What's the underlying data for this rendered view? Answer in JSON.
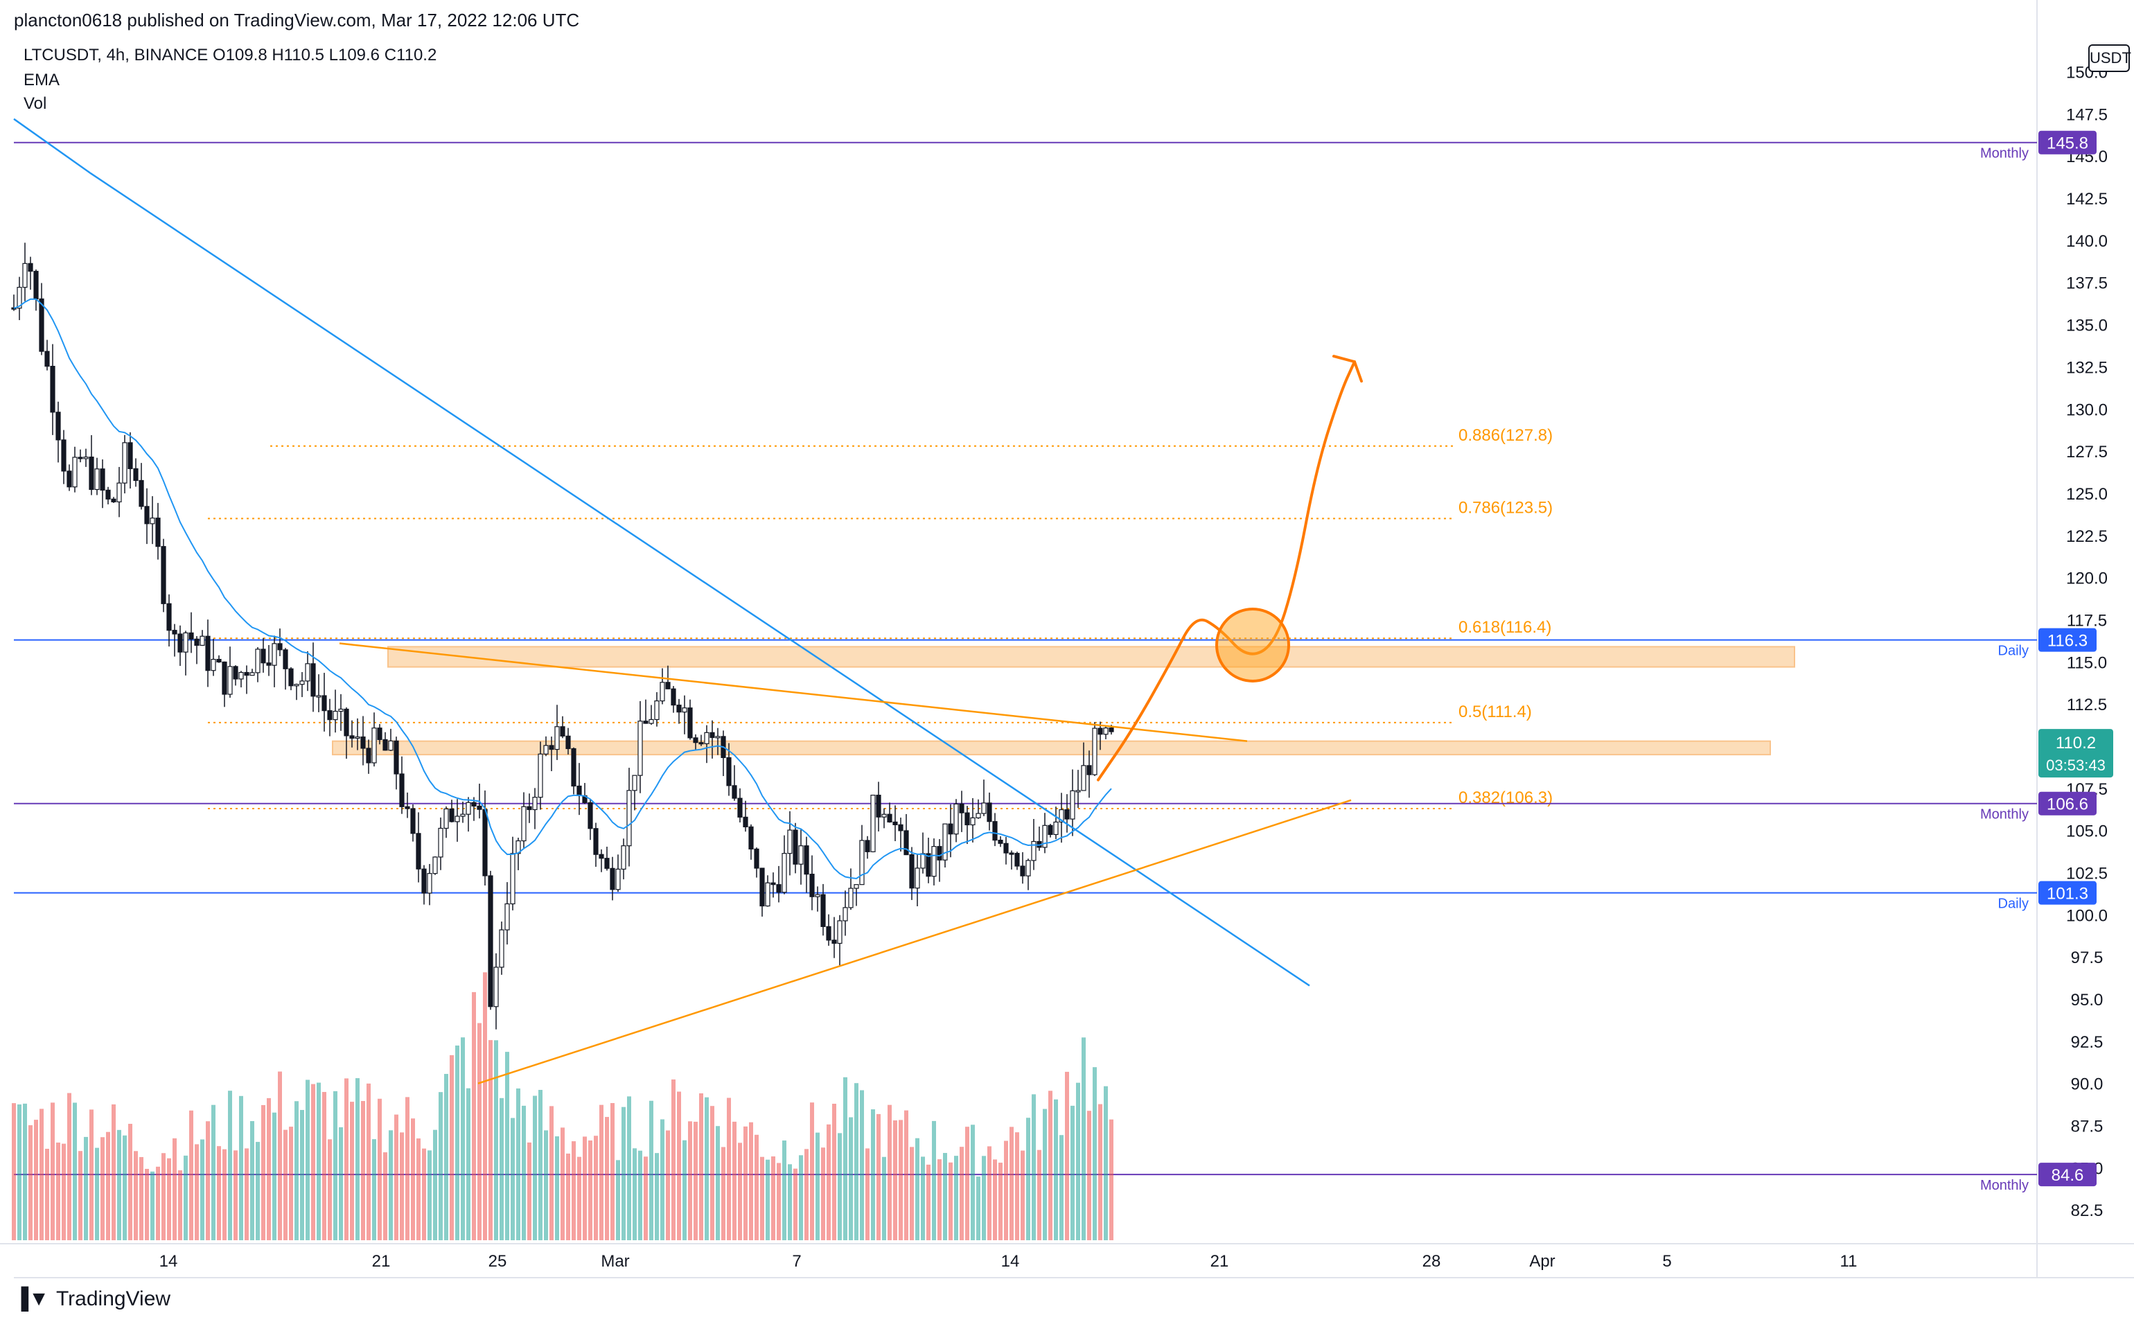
{
  "header": {
    "published": "plancton0618 published on TradingView.com, Mar 17, 2022 12:06 UTC"
  },
  "legend": {
    "symbol_line": "LTCUSDT, 4h, BINANCE  O109.8  H110.5  L109.6  C110.2",
    "ema": "EMA",
    "vol": "Vol"
  },
  "price_axis": {
    "unit": "USDT"
  },
  "footer": {
    "brand": "TradingView"
  },
  "chart_data": {
    "type": "candlestick",
    "symbol": "LTCUSDT",
    "timeframe": "4h",
    "exchange": "BINANCE",
    "ohlc": {
      "open": 109.8,
      "high": 110.5,
      "low": 109.6,
      "close": 110.2
    },
    "y_ticks": [
      82.5,
      85.0,
      87.5,
      90.0,
      92.5,
      95.0,
      97.5,
      100.0,
      102.5,
      105.0,
      107.5,
      110.0,
      112.5,
      115.0,
      117.5,
      120.0,
      122.5,
      125.0,
      127.5,
      130.0,
      132.5,
      135.0,
      137.5,
      140.0,
      142.5,
      145.0,
      147.5,
      150.0
    ],
    "ylim": [
      80.7,
      152.2
    ],
    "x_ticks": [
      "14",
      "21",
      "25",
      "Mar",
      "7",
      "14",
      "21",
      "28",
      "Apr",
      "5",
      "11"
    ],
    "horizontal_levels": [
      {
        "price": 145.8,
        "label": "145.8",
        "tag": "Monthly",
        "color": "#673ab7"
      },
      {
        "price": 116.3,
        "label": "116.3",
        "tag": "Daily",
        "color": "#2962ff"
      },
      {
        "price": 106.6,
        "label": "106.6",
        "tag": "Monthly",
        "color": "#673ab7"
      },
      {
        "price": 101.3,
        "label": "101.3",
        "tag": "Daily",
        "color": "#2962ff"
      },
      {
        "price": 84.6,
        "label": "84.6",
        "tag": "Monthly",
        "color": "#673ab7"
      }
    ],
    "current_price": {
      "price": 110.2,
      "label": "110.2",
      "countdown": "03:53:43",
      "color": "#26a69a"
    },
    "fibonacci": [
      {
        "ratio": 0.886,
        "price": 127.8,
        "label": "0.886(127.8)"
      },
      {
        "ratio": 0.786,
        "price": 123.5,
        "label": "0.786(123.5)"
      },
      {
        "ratio": 0.618,
        "price": 116.4,
        "label": "0.618(116.4)"
      },
      {
        "ratio": 0.5,
        "price": 111.4,
        "label": "0.5(111.4)"
      },
      {
        "ratio": 0.382,
        "price": 106.3,
        "label": "0.382(106.3)"
      }
    ],
    "zones": [
      {
        "from": 114.7,
        "to": 115.9
      },
      {
        "from": 109.5,
        "to": 110.3
      }
    ],
    "trendlines": [
      {
        "name": "descending-resistance",
        "color": "#2196f3",
        "points": [
          [
            130,
            144.0
          ],
          [
            1890,
            95.8
          ]
        ]
      },
      {
        "name": "triangle-upper",
        "color": "#ff9800",
        "points": [
          [
            490,
            116.1
          ],
          [
            1800,
            110.3
          ]
        ]
      },
      {
        "name": "triangle-lower",
        "color": "#ff9800",
        "points": [
          [
            690,
            90.0
          ],
          [
            1950,
            106.8
          ]
        ]
      }
    ],
    "projection": {
      "color": "#ff7a00",
      "points": [
        [
          1585,
          108.0
        ],
        [
          1635,
          111.0
        ],
        [
          1690,
          115.0
        ],
        [
          1725,
          117.8
        ],
        [
          1760,
          117.0
        ],
        [
          1800,
          115.2
        ],
        [
          1840,
          116.0
        ],
        [
          1870,
          120.0
        ],
        [
          1900,
          126.5
        ],
        [
          1935,
          131.0
        ],
        [
          1955,
          132.8
        ]
      ],
      "target_circle_price": 116.0
    },
    "colors": {
      "up": "#26a69a",
      "down": "#ef5350",
      "ema": "#2196f3",
      "fib": "#ff9800",
      "zone": "#fcd7ad"
    },
    "candle_anchors": [
      [
        0,
        136
      ],
      [
        18,
        140
      ],
      [
        40,
        134
      ],
      [
        60,
        130
      ],
      [
        80,
        125
      ],
      [
        95,
        127
      ],
      [
        115,
        126
      ],
      [
        140,
        124
      ],
      [
        160,
        127
      ],
      [
        175,
        126
      ],
      [
        190,
        124
      ],
      [
        210,
        121
      ],
      [
        230,
        116
      ],
      [
        245,
        117
      ],
      [
        265,
        116
      ],
      [
        285,
        115
      ],
      [
        300,
        114
      ],
      [
        320,
        114
      ],
      [
        340,
        115
      ],
      [
        365,
        116
      ],
      [
        390,
        115
      ],
      [
        410,
        114
      ],
      [
        430,
        114
      ],
      [
        450,
        112
      ],
      [
        475,
        111
      ],
      [
        495,
        110
      ],
      [
        510,
        110
      ],
      [
        530,
        110
      ],
      [
        550,
        109
      ],
      [
        570,
        105
      ],
      [
        590,
        102
      ],
      [
        610,
        104
      ],
      [
        630,
        106
      ],
      [
        645,
        107
      ],
      [
        660,
        107
      ],
      [
        675,
        105
      ],
      [
        690,
        94
      ],
      [
        705,
        100
      ],
      [
        720,
        103
      ],
      [
        740,
        106
      ],
      [
        760,
        109
      ],
      [
        780,
        111
      ],
      [
        800,
        109
      ],
      [
        820,
        107
      ],
      [
        840,
        104
      ],
      [
        860,
        102
      ],
      [
        880,
        105
      ],
      [
        900,
        110
      ],
      [
        920,
        112
      ],
      [
        940,
        113
      ],
      [
        960,
        113
      ],
      [
        980,
        111
      ],
      [
        1000,
        111
      ],
      [
        1020,
        110
      ],
      [
        1040,
        107
      ],
      [
        1060,
        104
      ],
      [
        1080,
        101
      ],
      [
        1100,
        102
      ],
      [
        1120,
        104
      ],
      [
        1140,
        103
      ],
      [
        1160,
        101
      ],
      [
        1180,
        99
      ],
      [
        1200,
        101
      ],
      [
        1220,
        103
      ],
      [
        1240,
        106
      ],
      [
        1260,
        107
      ],
      [
        1280,
        104
      ],
      [
        1300,
        102
      ],
      [
        1320,
        103
      ],
      [
        1340,
        104
      ],
      [
        1360,
        106
      ],
      [
        1380,
        105
      ],
      [
        1400,
        106
      ],
      [
        1420,
        105
      ],
      [
        1440,
        104
      ],
      [
        1460,
        103
      ],
      [
        1480,
        104
      ],
      [
        1500,
        105
      ],
      [
        1520,
        106
      ],
      [
        1540,
        108
      ],
      [
        1560,
        110
      ],
      [
        1580,
        110.2
      ]
    ],
    "volume_anchors": [
      [
        0,
        0.45
      ],
      [
        100,
        0.5
      ],
      [
        200,
        0.35
      ],
      [
        300,
        0.45
      ],
      [
        400,
        0.55
      ],
      [
        500,
        0.5
      ],
      [
        600,
        0.45
      ],
      [
        680,
        0.9
      ],
      [
        720,
        0.55
      ],
      [
        800,
        0.4
      ],
      [
        900,
        0.45
      ],
      [
        1000,
        0.55
      ],
      [
        1100,
        0.35
      ],
      [
        1200,
        0.5
      ],
      [
        1300,
        0.4
      ],
      [
        1400,
        0.35
      ],
      [
        1500,
        0.5
      ],
      [
        1540,
        0.75
      ],
      [
        1580,
        0.45
      ],
      [
        1600,
        0.15
      ]
    ]
  }
}
